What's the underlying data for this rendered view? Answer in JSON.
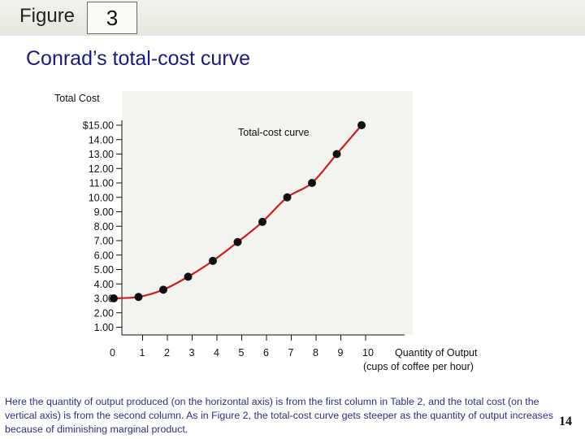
{
  "header": {
    "figure_word": "Figure",
    "figure_number": "3",
    "title": "Conrad’s total-cost curve"
  },
  "chart_data": {
    "type": "line",
    "ylabel": "Total Cost",
    "xlabel_line1": "Quantity of Output",
    "xlabel_line2": "(cups of coffee per hour)",
    "curve_label": "Total-cost curve",
    "x": [
      0,
      1,
      2,
      3,
      4,
      5,
      6,
      7,
      8,
      9,
      10
    ],
    "values": [
      3.0,
      3.1,
      3.6,
      4.5,
      5.6,
      6.9,
      8.3,
      10.0,
      11.0,
      13.0,
      15.0
    ],
    "xlim": [
      0,
      10
    ],
    "ylim": [
      0,
      15
    ],
    "x_ticks": [
      "0",
      "1",
      "2",
      "3",
      "4",
      "5",
      "6",
      "7",
      "8",
      "9",
      "10"
    ],
    "y_ticks": [
      {
        "value": 1,
        "label": "1.00"
      },
      {
        "value": 2,
        "label": "2.00"
      },
      {
        "value": 3,
        "label": "3.00"
      },
      {
        "value": 4,
        "label": "4.00"
      },
      {
        "value": 5,
        "label": "5.00"
      },
      {
        "value": 6,
        "label": "6.00"
      },
      {
        "value": 7,
        "label": "7.00"
      },
      {
        "value": 8,
        "label": "8.00"
      },
      {
        "value": 9,
        "label": "9.00"
      },
      {
        "value": 10,
        "label": "10.00"
      },
      {
        "value": 11,
        "label": "11.00"
      },
      {
        "value": 12,
        "label": "12.00"
      },
      {
        "value": 13,
        "label": "13.00"
      },
      {
        "value": 14,
        "label": "14.00"
      },
      {
        "value": 15,
        "label": "$15.00"
      }
    ],
    "grid": false,
    "colors": {
      "line": "#cc1f1f",
      "points": "#111111",
      "plot_background": "#f3f3f0"
    }
  },
  "caption": "Here the quantity of output produced (on the horizontal axis) is from the first column in Table 2, and the total cost (on the vertical axis) is from the second column. As in Figure 2, the total-cost curve gets steeper as the quantity of output increases because of diminishing marginal product.",
  "page_number": "14"
}
